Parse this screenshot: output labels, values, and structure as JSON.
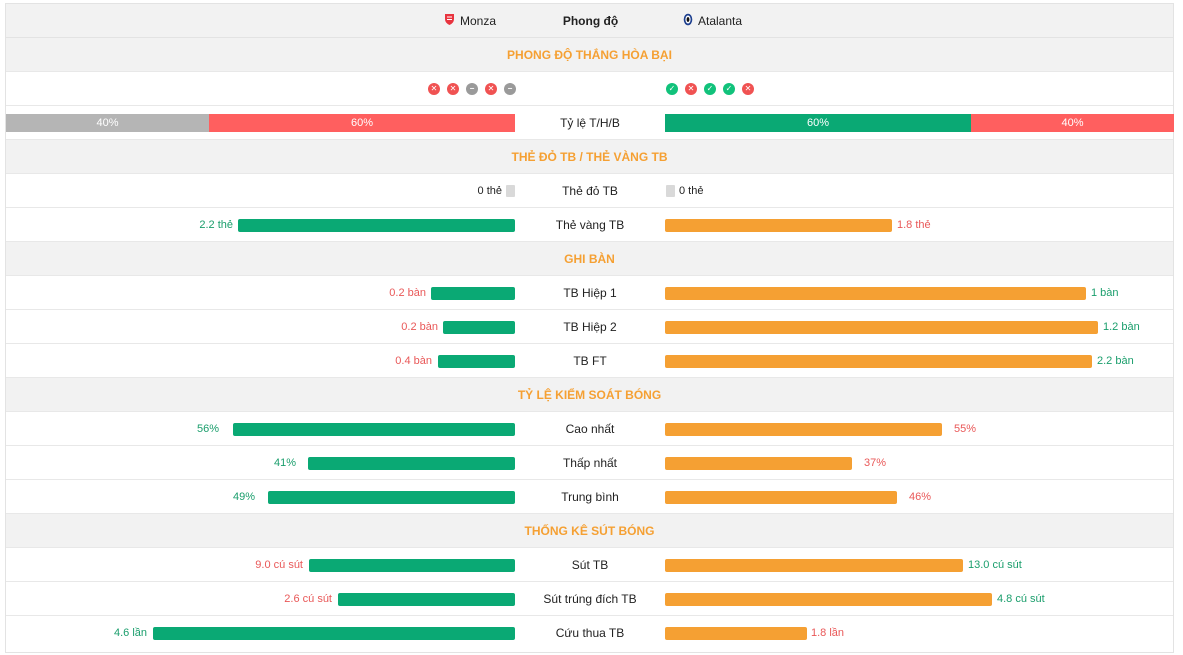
{
  "header": {
    "home_team": "Monza",
    "away_team": "Atalanta",
    "title": "Phong độ",
    "home_icon": "monza-crest-icon",
    "away_icon": "atalanta-crest-icon"
  },
  "colors": {
    "green": "#0aa974",
    "orange": "#f5a033",
    "red": "#ff5f5f",
    "grey": "#b5b5b5",
    "section": "#f5a033"
  },
  "sections": {
    "form": "PHONG ĐỘ THẮNG HÒA BẠI",
    "cards": "THẺ ĐỎ TB / THẺ VÀNG TB",
    "goals": "GHI BÀN",
    "possession": "TỶ LỆ KIỂM SOÁT BÓNG",
    "shots": "THỐNG KÊ SÚT BÓNG"
  },
  "form": {
    "home": [
      "L",
      "L",
      "D",
      "L",
      "D"
    ],
    "away": [
      "W",
      "L",
      "W",
      "W",
      "L"
    ],
    "ratio_label": "Tỷ lệ T/H/B",
    "home_ratio": {
      "first": "40%",
      "second": "60%"
    },
    "away_ratio": {
      "first": "60%",
      "second": "40%"
    }
  },
  "cards": {
    "red_label": "Thẻ đỏ TB",
    "home_red": "0 thẻ",
    "away_red": "0 thẻ",
    "yellow_label": "Thẻ vàng TB",
    "home_yellow": "2.2 thẻ",
    "away_yellow": "1.8 thẻ"
  },
  "goals": {
    "h1_label": "TB Hiệp 1",
    "home_h1": "0.2 bàn",
    "away_h1": "1 bàn",
    "h2_label": "TB Hiệp 2",
    "home_h2": "0.2 bàn",
    "away_h2": "1.2 bàn",
    "ft_label": "TB FT",
    "home_ft": "0.4 bàn",
    "away_ft": "2.2 bàn"
  },
  "possession": {
    "max_label": "Cao nhất",
    "home_max": "56%",
    "away_max": "55%",
    "min_label": "Thấp nhất",
    "home_min": "41%",
    "away_min": "37%",
    "avg_label": "Trung bình",
    "home_avg": "49%",
    "away_avg": "46%"
  },
  "shots": {
    "shots_label": "Sút TB",
    "home_shots": "9.0 cú sút",
    "away_shots": "13.0 cú sút",
    "on_target_label": "Sút trúng đích TB",
    "home_on_target": "2.6 cú sút",
    "away_on_target": "4.8 cú sút",
    "saves_label": "Cứu thua TB",
    "home_saves": "4.6 lần",
    "away_saves": "1.8 lần"
  }
}
